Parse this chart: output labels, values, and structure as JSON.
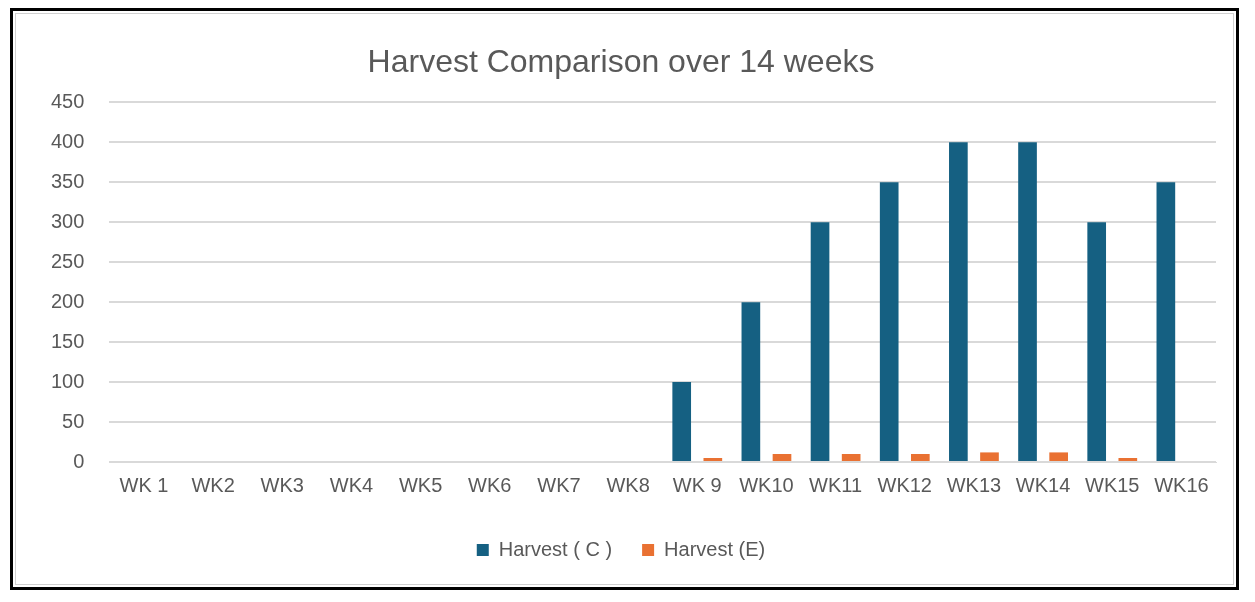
{
  "chart_data": {
    "type": "bar",
    "title": "Harvest Comparison over 14 weeks",
    "categories": [
      "WK 1",
      "WK2",
      "WK3",
      "WK4",
      "WK5",
      "WK6",
      "WK7",
      "WK8",
      "WK 9",
      "WK10",
      "WK11",
      "WK12",
      "WK13",
      "WK14",
      "WK15",
      "WK16"
    ],
    "series": [
      {
        "name": "Harvest ( C )",
        "color": "#156082",
        "values": [
          0,
          0,
          0,
          0,
          0,
          0,
          0,
          0,
          100,
          200,
          300,
          350,
          400,
          400,
          300,
          350
        ]
      },
      {
        "name": "Harvest (E)",
        "color": "#e97132",
        "values": [
          0,
          0,
          0,
          0,
          0,
          0,
          0,
          0,
          5,
          10,
          10,
          10,
          12,
          12,
          5,
          0
        ]
      }
    ],
    "ylim": [
      0,
      450
    ],
    "yticks": [
      0,
      50,
      100,
      150,
      200,
      250,
      300,
      350,
      400,
      450
    ],
    "grid": "y",
    "legend": "bottom"
  }
}
